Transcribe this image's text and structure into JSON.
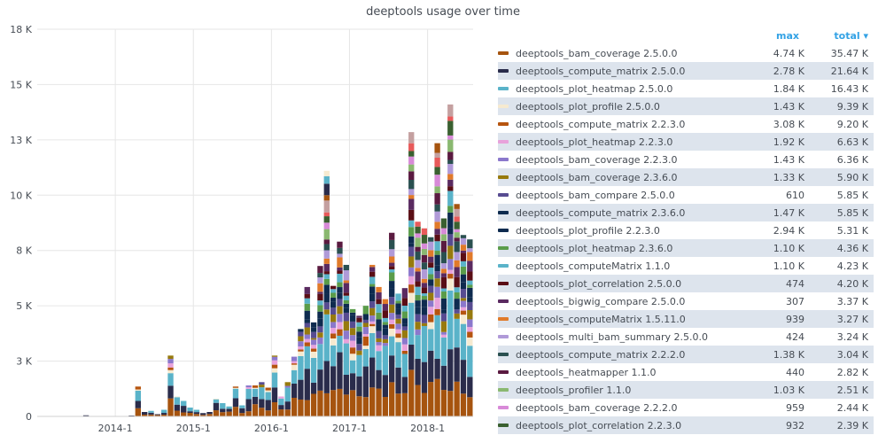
{
  "chart_data": {
    "type": "bar",
    "stacked": true,
    "title": "deeptools usage over time",
    "y_ticks": [
      "0",
      "3 K",
      "5 K",
      "8 K",
      "10 K",
      "13 K",
      "15 K",
      "18 K"
    ],
    "y_tick_values": [
      0,
      2500,
      5000,
      7500,
      10000,
      12500,
      15000,
      17500
    ],
    "ylim": [
      0,
      17500
    ],
    "x_ticks": [
      "2014-1",
      "2015-1",
      "2016-1",
      "2017-1",
      "2018-1"
    ],
    "x_tick_month_index": [
      12,
      24,
      36,
      48,
      60
    ],
    "months_start": "2013-01",
    "totals": [
      0,
      0,
      0,
      0,
      0,
      0,
      20,
      50,
      0,
      0,
      0,
      0,
      0,
      0,
      40,
      1350,
      200,
      250,
      100,
      300,
      2750,
      900,
      700,
      400,
      300,
      150,
      200,
      800,
      600,
      450,
      1350,
      500,
      1400,
      1400,
      1550,
      1300,
      2750,
      900,
      1550,
      2700,
      3950,
      5850,
      4250,
      6800,
      11100,
      5900,
      7900,
      6850,
      4850,
      4550,
      5000,
      6850,
      5850,
      5300,
      8300,
      5550,
      5800,
      12850,
      8800,
      8500,
      8100,
      12350,
      8950,
      14100,
      9600,
      8200,
      8000
    ],
    "series_colors": [
      "#a6540f",
      "#2a2c4b",
      "#5ab3c9",
      "#f6ead0",
      "#b6540f",
      "#e8a2db",
      "#8b78cc",
      "#977a0e",
      "#574c91",
      "#0e2b4f",
      "#0e2b4f",
      "#5a9c4a",
      "#5ab3c9",
      "#5a0e15",
      "#5a2a60",
      "#e07a2a",
      "#b09ad8",
      "#2a5050",
      "#5a1a40",
      "#8ab870",
      "#d88ad8",
      "#3a6030",
      "#e85a5a",
      "#c4a0a0"
    ],
    "max_header": "max",
    "total_header": "total ▾",
    "legend": [
      {
        "name": "deeptools_bam_coverage 2.5.0.0",
        "max": "4.74 K",
        "total": "35.47 K",
        "color": "#a6540f"
      },
      {
        "name": "deeptools_compute_matrix 2.5.0.0",
        "max": "2.78 K",
        "total": "21.64 K",
        "color": "#2a2c4b"
      },
      {
        "name": "deeptools_plot_heatmap 2.5.0.0",
        "max": "1.84 K",
        "total": "16.43 K",
        "color": "#5ab3c9"
      },
      {
        "name": "deeptools_plot_profile 2.5.0.0",
        "max": "1.43 K",
        "total": "9.39 K",
        "color": "#f6ead0"
      },
      {
        "name": "deeptools_compute_matrix 2.2.3.0",
        "max": "3.08 K",
        "total": "9.20 K",
        "color": "#b6540f"
      },
      {
        "name": "deeptools_plot_heatmap 2.2.3.0",
        "max": "1.92 K",
        "total": "6.63 K",
        "color": "#e8a2db"
      },
      {
        "name": "deeptools_bam_coverage 2.2.3.0",
        "max": "1.43 K",
        "total": "6.36 K",
        "color": "#8b78cc"
      },
      {
        "name": "deeptools_bam_coverage 2.3.6.0",
        "max": "1.33 K",
        "total": "5.90 K",
        "color": "#977a0e"
      },
      {
        "name": "deeptools_bam_compare 2.5.0.0",
        "max": "610",
        "total": "5.85 K",
        "color": "#574c91"
      },
      {
        "name": "deeptools_compute_matrix 2.3.6.0",
        "max": "1.47 K",
        "total": "5.85 K",
        "color": "#0e2b4f"
      },
      {
        "name": "deeptools_plot_profile 2.2.3.0",
        "max": "2.94 K",
        "total": "5.31 K",
        "color": "#0e2b4f"
      },
      {
        "name": "deeptools_plot_heatmap 2.3.6.0",
        "max": "1.10 K",
        "total": "4.36 K",
        "color": "#5a9c4a"
      },
      {
        "name": "deeptools_computeMatrix 1.1.0",
        "max": "1.10 K",
        "total": "4.23 K",
        "color": "#5ab3c9"
      },
      {
        "name": "deeptools_plot_correlation 2.5.0.0",
        "max": "474",
        "total": "4.20 K",
        "color": "#5a0e15"
      },
      {
        "name": "deeptools_bigwig_compare 2.5.0.0",
        "max": "307",
        "total": "3.37 K",
        "color": "#5a2a60"
      },
      {
        "name": "deeptools_computeMatrix 1.5.11.0",
        "max": "939",
        "total": "3.27 K",
        "color": "#e07a2a"
      },
      {
        "name": "deeptools_multi_bam_summary 2.5.0.0",
        "max": "424",
        "total": "3.24 K",
        "color": "#b09ad8"
      },
      {
        "name": "deeptools_compute_matrix 2.2.2.0",
        "max": "1.38 K",
        "total": "3.04 K",
        "color": "#2a5050"
      },
      {
        "name": "deeptools_heatmapper 1.1.0",
        "max": "440",
        "total": "2.82 K",
        "color": "#5a1a40"
      },
      {
        "name": "deeptools_profiler 1.1.0",
        "max": "1.03 K",
        "total": "2.51 K",
        "color": "#8ab870"
      },
      {
        "name": "deeptools_bam_coverage 2.2.2.0",
        "max": "959",
        "total": "2.44 K",
        "color": "#d88ad8"
      },
      {
        "name": "deeptools_plot_correlation 2.2.3.0",
        "max": "932",
        "total": "2.39 K",
        "color": "#3a6030"
      }
    ]
  }
}
